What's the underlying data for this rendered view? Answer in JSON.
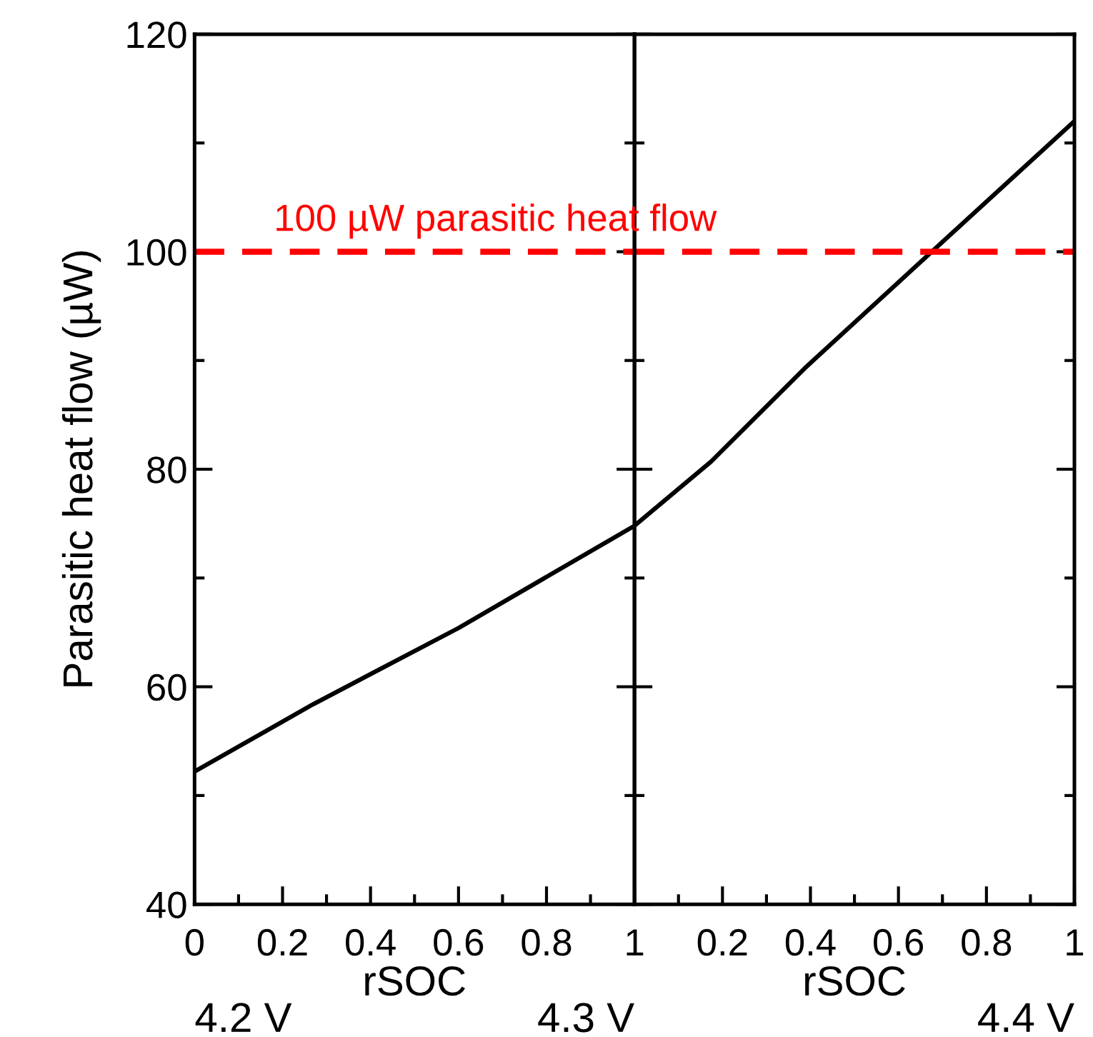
{
  "chart_data": [
    {
      "type": "line",
      "xlabel": "rSOC",
      "ylabel": "Parasitic heat flow (µW)",
      "x": [
        0,
        0.27,
        0.6,
        1
      ],
      "series": [
        {
          "color": "#000000",
          "values": [
            52.2,
            58.4,
            65.4,
            74.8
          ]
        }
      ],
      "xlim": [
        0,
        1
      ],
      "xticks": [
        0,
        0.2,
        0.4,
        0.6,
        0.8,
        1
      ],
      "ylim": [
        40,
        120
      ],
      "yticks": [
        40,
        60,
        80,
        100,
        120
      ],
      "ref_lines": [
        {
          "axis": "y",
          "value": 100,
          "label": "100 µW parasitic heat flow",
          "color": "#ff0000",
          "line_style": "dashed"
        }
      ],
      "annotations": [
        "4.2 V",
        "4.3 V"
      ],
      "grid": false,
      "legend": false
    },
    {
      "type": "line",
      "xlabel": "rSOC",
      "x": [
        0,
        0.174,
        0.39,
        0.681,
        1
      ],
      "series": [
        {
          "color": "#000000",
          "values": [
            74.8,
            80.7,
            89.4,
            100.2,
            112
          ]
        }
      ],
      "xlim": [
        0,
        1
      ],
      "xticks": [
        {
          "value": 0,
          "label": null
        },
        0.2,
        0.4,
        0.6,
        0.8,
        1
      ],
      "ylim": [
        40,
        120
      ],
      "yticks": [
        40,
        60,
        80,
        100,
        120
      ],
      "ref_lines": [
        {
          "axis": "y",
          "value": 100,
          "color": "#ff0000",
          "line_style": "dashed"
        }
      ],
      "annotations": [
        "4.4 V"
      ],
      "tick_labels": "x",
      "grid": false,
      "legend": false
    }
  ]
}
